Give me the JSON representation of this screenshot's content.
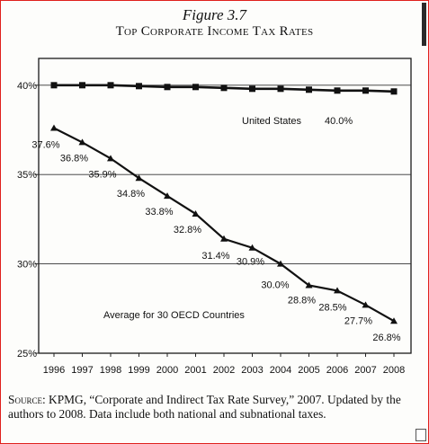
{
  "figure": {
    "label": "Figure 3.7",
    "title": "Top Corporate Income Tax Rates"
  },
  "source": {
    "lead": "Source:",
    "text": " KPMG, “Corporate and Indirect Tax Rate Survey,” 2007. Updated by the authors to 2008. Data include both national and subnational taxes."
  },
  "chart_data": {
    "type": "line",
    "x": [
      1996,
      1997,
      1998,
      1999,
      2000,
      2001,
      2002,
      2003,
      2004,
      2005,
      2006,
      2007,
      2008
    ],
    "ylim": [
      25,
      41.5
    ],
    "yticks": [
      25,
      30,
      35,
      40
    ],
    "ytick_labels": [
      "25%",
      "30%",
      "35%",
      "40%"
    ],
    "grid": true,
    "series": [
      {
        "name": "United States",
        "label_value": "40.0%",
        "marker": "square",
        "values": [
          40.0,
          40.0,
          40.0,
          39.95,
          39.9,
          39.9,
          39.85,
          39.8,
          39.8,
          39.75,
          39.7,
          39.7,
          39.65
        ]
      },
      {
        "name": "Average for 30 OECD Countries",
        "marker": "triangle",
        "values": [
          37.6,
          36.8,
          35.9,
          34.8,
          33.8,
          32.8,
          31.4,
          30.9,
          30.0,
          28.8,
          28.5,
          27.7,
          26.8
        ],
        "data_labels": [
          "37.6%",
          "36.8%",
          "35.9%",
          "34.8%",
          "33.8%",
          "32.8%",
          "31.4%",
          "30.9%",
          "30.0%",
          "28.8%",
          "28.5%",
          "27.7%",
          "26.8%"
        ]
      }
    ]
  }
}
